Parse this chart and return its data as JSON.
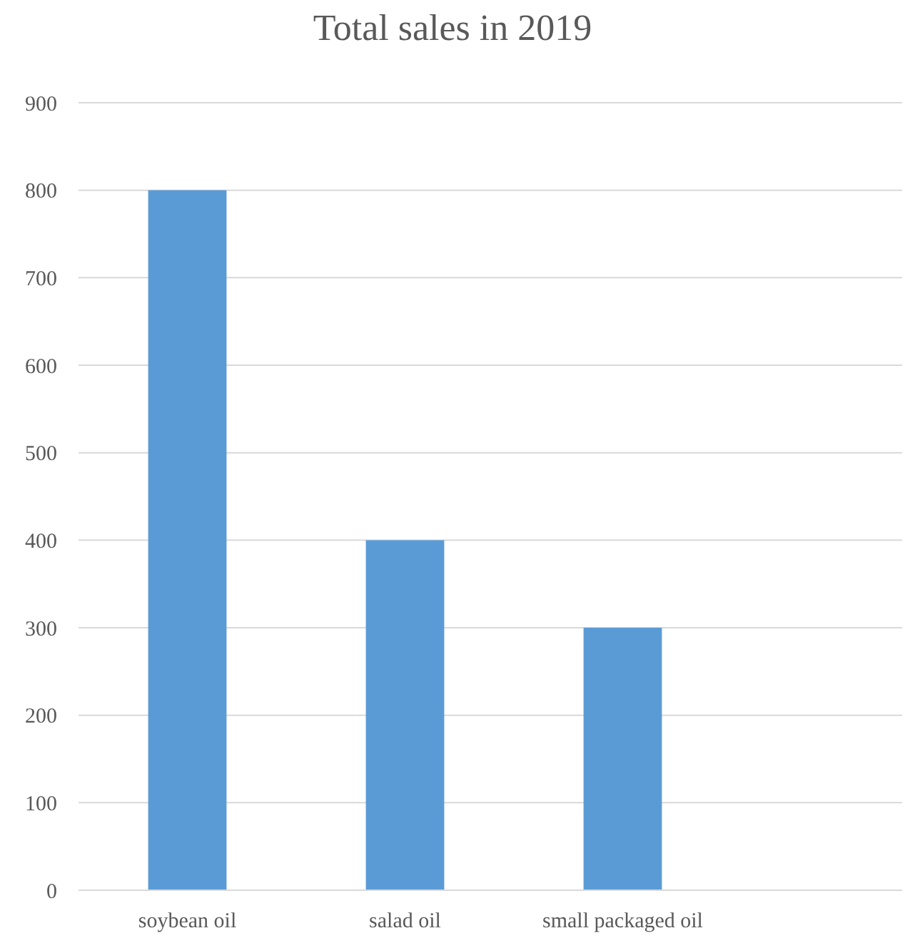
{
  "chart_data": {
    "type": "bar",
    "title": "Total sales in 2019",
    "categories": [
      "soybean oil",
      "salad oil",
      "small packaged oil"
    ],
    "values": [
      800,
      400,
      300
    ],
    "color": "#5b9bd5",
    "ylim": [
      0,
      900
    ],
    "yticks": [
      0,
      100,
      200,
      300,
      400,
      500,
      600,
      700,
      800,
      900
    ],
    "grid": "y"
  }
}
